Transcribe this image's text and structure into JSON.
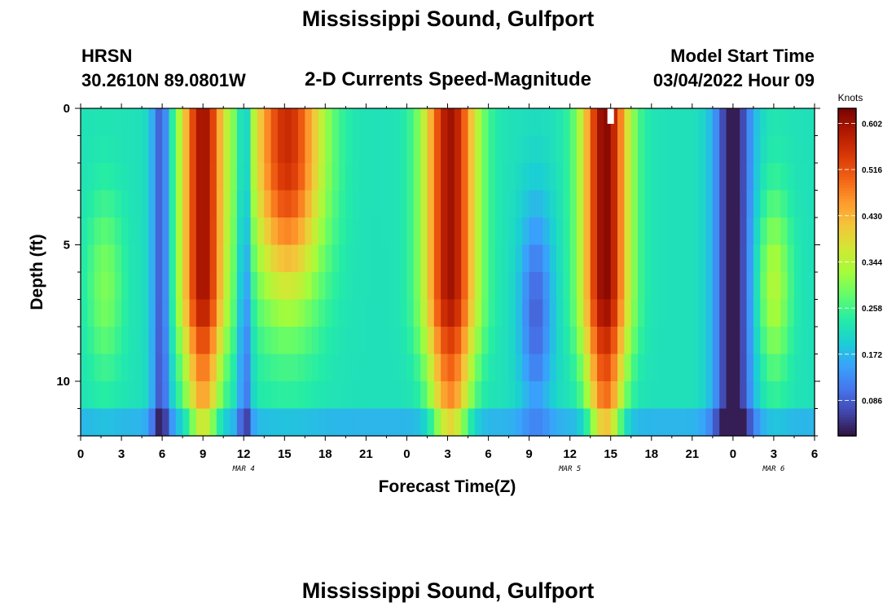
{
  "header": {
    "title": "Mississippi Sound, Gulfport",
    "station": "HRSN",
    "coords": "30.2610N  89.0801W",
    "subtitle": "2-D Currents Speed-Magnitude",
    "model_label": "Model Start Time",
    "model_time": "03/04/2022 Hour 09"
  },
  "footer": {
    "next_title": "Mississippi Sound, Gulfport"
  },
  "colors": {
    "colormap": [
      "#30123b",
      "#4145ab",
      "#4675ed",
      "#39a2fc",
      "#1bcfd4",
      "#24eca6",
      "#61fc6c",
      "#a4fc3b",
      "#d1e834",
      "#f3c63a",
      "#fe9b2d",
      "#f36315",
      "#d93806",
      "#b11901",
      "#7a0402"
    ],
    "marker": "#ffffff"
  },
  "chart_data": {
    "type": "heatmap",
    "title": "2-D Currents Speed-Magnitude",
    "xlabel": "Forecast Time(Z)",
    "ylabel": "Depth (ft)",
    "x_range_hours": [
      0,
      54
    ],
    "x_ticks": [
      {
        "h": 0,
        "label": "0"
      },
      {
        "h": 3,
        "label": "3"
      },
      {
        "h": 6,
        "label": "6"
      },
      {
        "h": 9,
        "label": "9"
      },
      {
        "h": 12,
        "label": "12"
      },
      {
        "h": 15,
        "label": "15"
      },
      {
        "h": 18,
        "label": "18"
      },
      {
        "h": 21,
        "label": "21"
      },
      {
        "h": 24,
        "label": "0"
      },
      {
        "h": 27,
        "label": "3"
      },
      {
        "h": 30,
        "label": "6"
      },
      {
        "h": 33,
        "label": "9"
      },
      {
        "h": 36,
        "label": "12"
      },
      {
        "h": 39,
        "label": "15"
      },
      {
        "h": 42,
        "label": "18"
      },
      {
        "h": 45,
        "label": "21"
      },
      {
        "h": 48,
        "label": "0"
      },
      {
        "h": 51,
        "label": "3"
      },
      {
        "h": 54,
        "label": "6"
      }
    ],
    "date_labels": [
      {
        "h": 12,
        "label": "MAR 4"
      },
      {
        "h": 36,
        "label": "MAR 5"
      },
      {
        "h": 51,
        "label": "MAR 6"
      }
    ],
    "y_range_ft": [
      0,
      12
    ],
    "y_ticks": [
      {
        "v": 0,
        "label": "0"
      },
      {
        "v": 5,
        "label": "5"
      },
      {
        "v": 10,
        "label": "10"
      }
    ],
    "colorbar": {
      "label": "Knots",
      "min": 0.02,
      "max": 0.63,
      "ticks": [
        {
          "v": 0.086,
          "label": "0.086"
        },
        {
          "v": 0.172,
          "label": "0.172"
        },
        {
          "v": 0.258,
          "label": "0.258"
        },
        {
          "v": 0.344,
          "label": "0.344"
        },
        {
          "v": 0.43,
          "label": "0.430"
        },
        {
          "v": 0.516,
          "label": "0.516"
        },
        {
          "v": 0.602,
          "label": "0.602"
        }
      ]
    },
    "current_time_marker_hour": 39,
    "depth_levels_ft": [
      0.5,
      1.5,
      2.5,
      3.5,
      4.5,
      5.5,
      6.5,
      7.5,
      8.5,
      9.5,
      10.5,
      11.5
    ],
    "peaks": [
      {
        "center_h": 9.0,
        "width_h": 1.6,
        "amp": 0.6,
        "deep_decay": 0.12,
        "skew": -0.3
      },
      {
        "center_h": 1.8,
        "width_h": 1.3,
        "amp": 0.3,
        "profile": "mid"
      },
      {
        "center_h": 15.2,
        "width_h": 2.6,
        "amp": 0.56,
        "profile": "surface"
      },
      {
        "center_h": 27.2,
        "width_h": 1.9,
        "amp": 0.6,
        "deep_decay": 0.1
      },
      {
        "center_h": 38.6,
        "width_h": 1.7,
        "amp": 0.62,
        "deep_decay": 0.09
      },
      {
        "center_h": 51.0,
        "width_h": 1.2,
        "amp": 0.34,
        "profile": "mid"
      }
    ],
    "minima": [
      {
        "center_h": 5.9,
        "width_h": 0.7,
        "depth": 0.14
      },
      {
        "center_h": 12.1,
        "width_h": 0.5,
        "depth": 0.12
      },
      {
        "center_h": 33.5,
        "width_h": 1.2,
        "depth": 0.13,
        "profile": "mid"
      },
      {
        "center_h": 48.0,
        "width_h": 1.4,
        "depth": 0.2
      }
    ],
    "base_speed": 0.22
  }
}
